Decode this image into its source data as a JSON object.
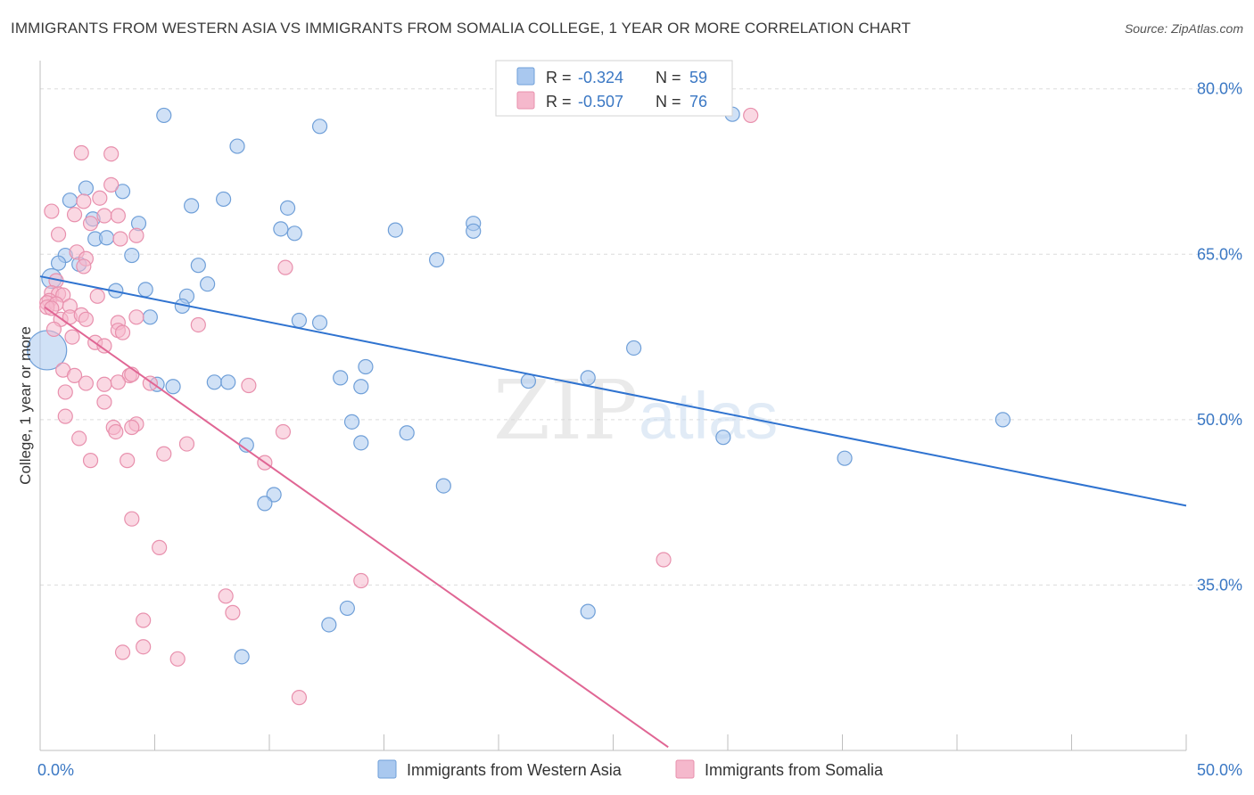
{
  "title": "IMMIGRANTS FROM WESTERN ASIA VS IMMIGRANTS FROM SOMALIA COLLEGE, 1 YEAR OR MORE CORRELATION CHART",
  "source": "Source: ZipAtlas.com",
  "watermark": {
    "zip": "ZIP",
    "atlas": "atlas"
  },
  "colors": {
    "blue": "#a9c8ef",
    "blue_stroke": "#6f9fd8",
    "blue_line": "#2f73d0",
    "pink": "#f5b8cc",
    "pink_stroke": "#e890ad",
    "pink_line": "#e06694",
    "accent_text": "#3b78c4"
  },
  "legend": {
    "r_label": "R =",
    "n_label": "N =",
    "series": [
      {
        "r": "-0.324",
        "n": "59"
      },
      {
        "r": "-0.507",
        "n": "76"
      }
    ]
  },
  "chart_data": {
    "type": "scatter",
    "title": "IMMIGRANTS FROM WESTERN ASIA VS IMMIGRANTS FROM SOMALIA COLLEGE, 1 YEAR OR MORE CORRELATION CHART",
    "xlabel": "",
    "ylabel": "College, 1 year or more",
    "xlim": [
      0,
      50
    ],
    "ylim": [
      20,
      82
    ],
    "x_tick_labels": [
      "0.0%",
      "50.0%"
    ],
    "y_ticks": [
      35,
      50,
      65,
      80
    ],
    "y_tick_labels": [
      "35.0%",
      "50.0%",
      "65.0%",
      "80.0%"
    ],
    "legend_position": "bottom",
    "series": [
      {
        "name": "Immigrants from Western Asia",
        "trend": {
          "x": [
            0,
            50
          ],
          "y": [
            63.0,
            42.2
          ]
        },
        "points": [
          {
            "x": 5.4,
            "y": 77.6
          },
          {
            "x": 12.2,
            "y": 76.6
          },
          {
            "x": 8.6,
            "y": 74.8
          },
          {
            "x": 2.0,
            "y": 71.0
          },
          {
            "x": 3.6,
            "y": 70.7
          },
          {
            "x": 1.3,
            "y": 69.9
          },
          {
            "x": 6.6,
            "y": 69.4
          },
          {
            "x": 8.0,
            "y": 70.0
          },
          {
            "x": 10.8,
            "y": 69.2
          },
          {
            "x": 2.3,
            "y": 68.2
          },
          {
            "x": 4.3,
            "y": 67.8
          },
          {
            "x": 10.5,
            "y": 67.3
          },
          {
            "x": 11.1,
            "y": 66.9
          },
          {
            "x": 15.5,
            "y": 67.2
          },
          {
            "x": 18.9,
            "y": 67.8
          },
          {
            "x": 18.9,
            "y": 67.1
          },
          {
            "x": 2.4,
            "y": 66.4
          },
          {
            "x": 2.9,
            "y": 66.5
          },
          {
            "x": 1.1,
            "y": 64.9
          },
          {
            "x": 4.0,
            "y": 64.9
          },
          {
            "x": 6.9,
            "y": 64.0
          },
          {
            "x": 17.3,
            "y": 64.5
          },
          {
            "x": 0.8,
            "y": 64.2
          },
          {
            "x": 1.7,
            "y": 64.1
          },
          {
            "x": 0.5,
            "y": 62.8
          },
          {
            "x": 7.3,
            "y": 62.3
          },
          {
            "x": 3.3,
            "y": 61.7
          },
          {
            "x": 4.6,
            "y": 61.8
          },
          {
            "x": 6.4,
            "y": 61.2
          },
          {
            "x": 6.2,
            "y": 60.3
          },
          {
            "x": 4.8,
            "y": 59.3
          },
          {
            "x": 11.3,
            "y": 59.0
          },
          {
            "x": 12.2,
            "y": 58.8
          },
          {
            "x": 0.3,
            "y": 56.3
          },
          {
            "x": 25.9,
            "y": 56.5
          },
          {
            "x": 14.2,
            "y": 54.8
          },
          {
            "x": 13.1,
            "y": 53.8
          },
          {
            "x": 21.3,
            "y": 53.5
          },
          {
            "x": 23.9,
            "y": 53.8
          },
          {
            "x": 5.1,
            "y": 53.2
          },
          {
            "x": 5.8,
            "y": 53.0
          },
          {
            "x": 7.6,
            "y": 53.4
          },
          {
            "x": 8.2,
            "y": 53.4
          },
          {
            "x": 14.0,
            "y": 53.0
          },
          {
            "x": 13.6,
            "y": 49.8
          },
          {
            "x": 16.0,
            "y": 48.8
          },
          {
            "x": 14.0,
            "y": 47.9
          },
          {
            "x": 9.0,
            "y": 47.7
          },
          {
            "x": 42.0,
            "y": 50.0
          },
          {
            "x": 29.8,
            "y": 48.4
          },
          {
            "x": 35.1,
            "y": 46.5
          },
          {
            "x": 17.6,
            "y": 44.0
          },
          {
            "x": 10.2,
            "y": 43.2
          },
          {
            "x": 9.8,
            "y": 42.4
          },
          {
            "x": 13.4,
            "y": 32.9
          },
          {
            "x": 12.6,
            "y": 31.4
          },
          {
            "x": 23.9,
            "y": 32.6
          },
          {
            "x": 8.8,
            "y": 28.5
          },
          {
            "x": 30.2,
            "y": 77.7
          }
        ]
      },
      {
        "name": "Immigrants from Somalia",
        "trend": {
          "x": [
            0.2,
            27.4
          ],
          "y": [
            60.2,
            20.3
          ]
        },
        "points": [
          {
            "x": 1.8,
            "y": 74.2
          },
          {
            "x": 3.1,
            "y": 74.1
          },
          {
            "x": 3.1,
            "y": 71.3
          },
          {
            "x": 2.6,
            "y": 70.1
          },
          {
            "x": 1.9,
            "y": 69.8
          },
          {
            "x": 0.5,
            "y": 68.9
          },
          {
            "x": 1.5,
            "y": 68.6
          },
          {
            "x": 2.8,
            "y": 68.5
          },
          {
            "x": 3.4,
            "y": 68.5
          },
          {
            "x": 2.2,
            "y": 67.8
          },
          {
            "x": 0.8,
            "y": 66.8
          },
          {
            "x": 4.2,
            "y": 66.7
          },
          {
            "x": 3.5,
            "y": 66.4
          },
          {
            "x": 1.6,
            "y": 65.2
          },
          {
            "x": 2.0,
            "y": 64.6
          },
          {
            "x": 1.9,
            "y": 63.9
          },
          {
            "x": 10.7,
            "y": 63.8
          },
          {
            "x": 0.7,
            "y": 62.6
          },
          {
            "x": 0.5,
            "y": 61.5
          },
          {
            "x": 0.8,
            "y": 61.4
          },
          {
            "x": 1.0,
            "y": 61.3
          },
          {
            "x": 2.5,
            "y": 61.2
          },
          {
            "x": 0.4,
            "y": 60.8
          },
          {
            "x": 0.3,
            "y": 60.6
          },
          {
            "x": 0.7,
            "y": 60.5
          },
          {
            "x": 1.3,
            "y": 60.3
          },
          {
            "x": 0.3,
            "y": 60.2
          },
          {
            "x": 0.5,
            "y": 60.1
          },
          {
            "x": 0.9,
            "y": 59.1
          },
          {
            "x": 1.3,
            "y": 59.3
          },
          {
            "x": 1.8,
            "y": 59.5
          },
          {
            "x": 2.0,
            "y": 59.1
          },
          {
            "x": 4.2,
            "y": 59.3
          },
          {
            "x": 3.4,
            "y": 58.8
          },
          {
            "x": 6.9,
            "y": 58.6
          },
          {
            "x": 0.6,
            "y": 58.2
          },
          {
            "x": 3.4,
            "y": 58.1
          },
          {
            "x": 3.6,
            "y": 57.9
          },
          {
            "x": 1.4,
            "y": 57.5
          },
          {
            "x": 2.4,
            "y": 57.0
          },
          {
            "x": 2.8,
            "y": 56.7
          },
          {
            "x": 1.0,
            "y": 54.5
          },
          {
            "x": 1.5,
            "y": 54.0
          },
          {
            "x": 3.9,
            "y": 54.0
          },
          {
            "x": 4.0,
            "y": 54.1
          },
          {
            "x": 2.0,
            "y": 53.3
          },
          {
            "x": 2.8,
            "y": 53.2
          },
          {
            "x": 3.4,
            "y": 53.4
          },
          {
            "x": 4.8,
            "y": 53.3
          },
          {
            "x": 9.1,
            "y": 53.1
          },
          {
            "x": 1.1,
            "y": 52.5
          },
          {
            "x": 2.8,
            "y": 51.6
          },
          {
            "x": 1.1,
            "y": 50.3
          },
          {
            "x": 3.2,
            "y": 49.3
          },
          {
            "x": 4.2,
            "y": 49.6
          },
          {
            "x": 3.3,
            "y": 48.9
          },
          {
            "x": 4.0,
            "y": 49.3
          },
          {
            "x": 10.6,
            "y": 48.9
          },
          {
            "x": 1.7,
            "y": 48.3
          },
          {
            "x": 6.4,
            "y": 47.8
          },
          {
            "x": 5.4,
            "y": 46.9
          },
          {
            "x": 2.2,
            "y": 46.3
          },
          {
            "x": 3.8,
            "y": 46.3
          },
          {
            "x": 9.8,
            "y": 46.1
          },
          {
            "x": 4.0,
            "y": 41.0
          },
          {
            "x": 5.2,
            "y": 38.4
          },
          {
            "x": 27.2,
            "y": 37.3
          },
          {
            "x": 14.0,
            "y": 35.4
          },
          {
            "x": 8.1,
            "y": 34.0
          },
          {
            "x": 8.4,
            "y": 32.5
          },
          {
            "x": 4.5,
            "y": 31.8
          },
          {
            "x": 4.5,
            "y": 29.4
          },
          {
            "x": 3.6,
            "y": 28.9
          },
          {
            "x": 6.0,
            "y": 28.3
          },
          {
            "x": 11.3,
            "y": 24.8
          },
          {
            "x": 31.0,
            "y": 77.6
          }
        ]
      }
    ]
  }
}
